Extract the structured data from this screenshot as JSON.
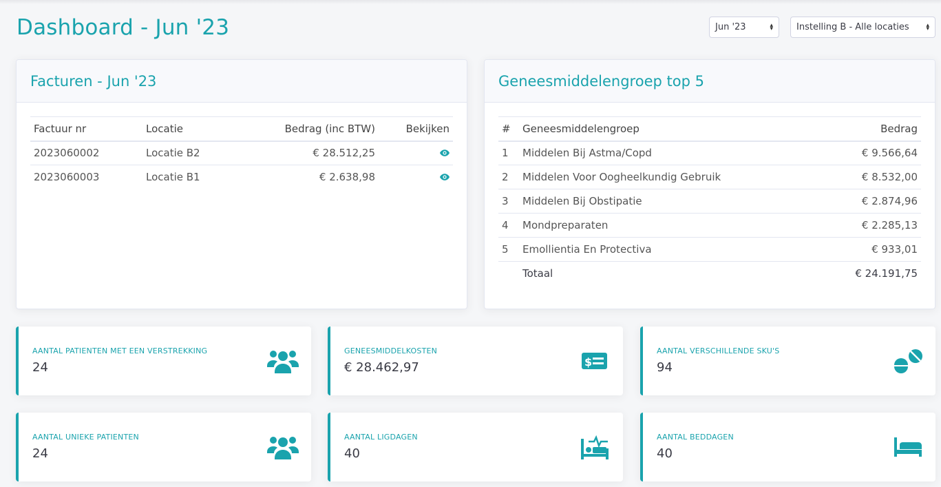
{
  "page": {
    "title": "Dashboard - Jun '23"
  },
  "filters": {
    "month": "Jun '23",
    "location": "Instelling B - Alle locaties"
  },
  "invoices": {
    "title": "Facturen - Jun '23",
    "columns": [
      "Factuur nr",
      "Locatie",
      "Bedrag (inc BTW)",
      "Bekijken"
    ],
    "rows": [
      {
        "nr": "2023060002",
        "location": "Locatie B2",
        "amount": "€ 28.512,25",
        "view_icon": "eye-icon"
      },
      {
        "nr": "2023060003",
        "location": "Locatie B1",
        "amount": "€ 2.638,98",
        "view_icon": "eye-icon"
      }
    ]
  },
  "top5": {
    "title": "Geneesmiddelengroep top 5",
    "columns": [
      "#",
      "Geneesmiddelengroep",
      "Bedrag"
    ],
    "rows": [
      {
        "rank": "1",
        "group": "Middelen Bij Astma/Copd",
        "amount": "€ 9.566,64"
      },
      {
        "rank": "2",
        "group": "Middelen Voor Oogheelkundig Gebruik",
        "amount": "€ 8.532,00"
      },
      {
        "rank": "3",
        "group": "Middelen Bij Obstipatie",
        "amount": "€ 2.874,96"
      },
      {
        "rank": "4",
        "group": "Mondpreparaten",
        "amount": "€ 2.285,13"
      },
      {
        "rank": "5",
        "group": "Emollientia En Protectiva",
        "amount": "€ 933,01"
      }
    ],
    "total_label": "Totaal",
    "total_amount": "€ 24.191,75"
  },
  "stats": [
    {
      "label": "Aantal patienten met een verstrekking",
      "value": "24",
      "icon": "users-icon"
    },
    {
      "label": "Geneesmiddelkosten",
      "value": "€ 28.462,97",
      "icon": "money-bill-icon"
    },
    {
      "label": "Aantal verschillende SKU's",
      "value": "94",
      "icon": "pills-icon"
    },
    {
      "label": "Aantal unieke patienten",
      "value": "24",
      "icon": "users-icon"
    },
    {
      "label": "Aantal ligdagen",
      "value": "40",
      "icon": "procedures-icon"
    },
    {
      "label": "Aantal beddagen",
      "value": "40",
      "icon": "bed-icon"
    }
  ],
  "colors": {
    "accent": "#1aa3ad",
    "background": "#f5f6f8"
  }
}
